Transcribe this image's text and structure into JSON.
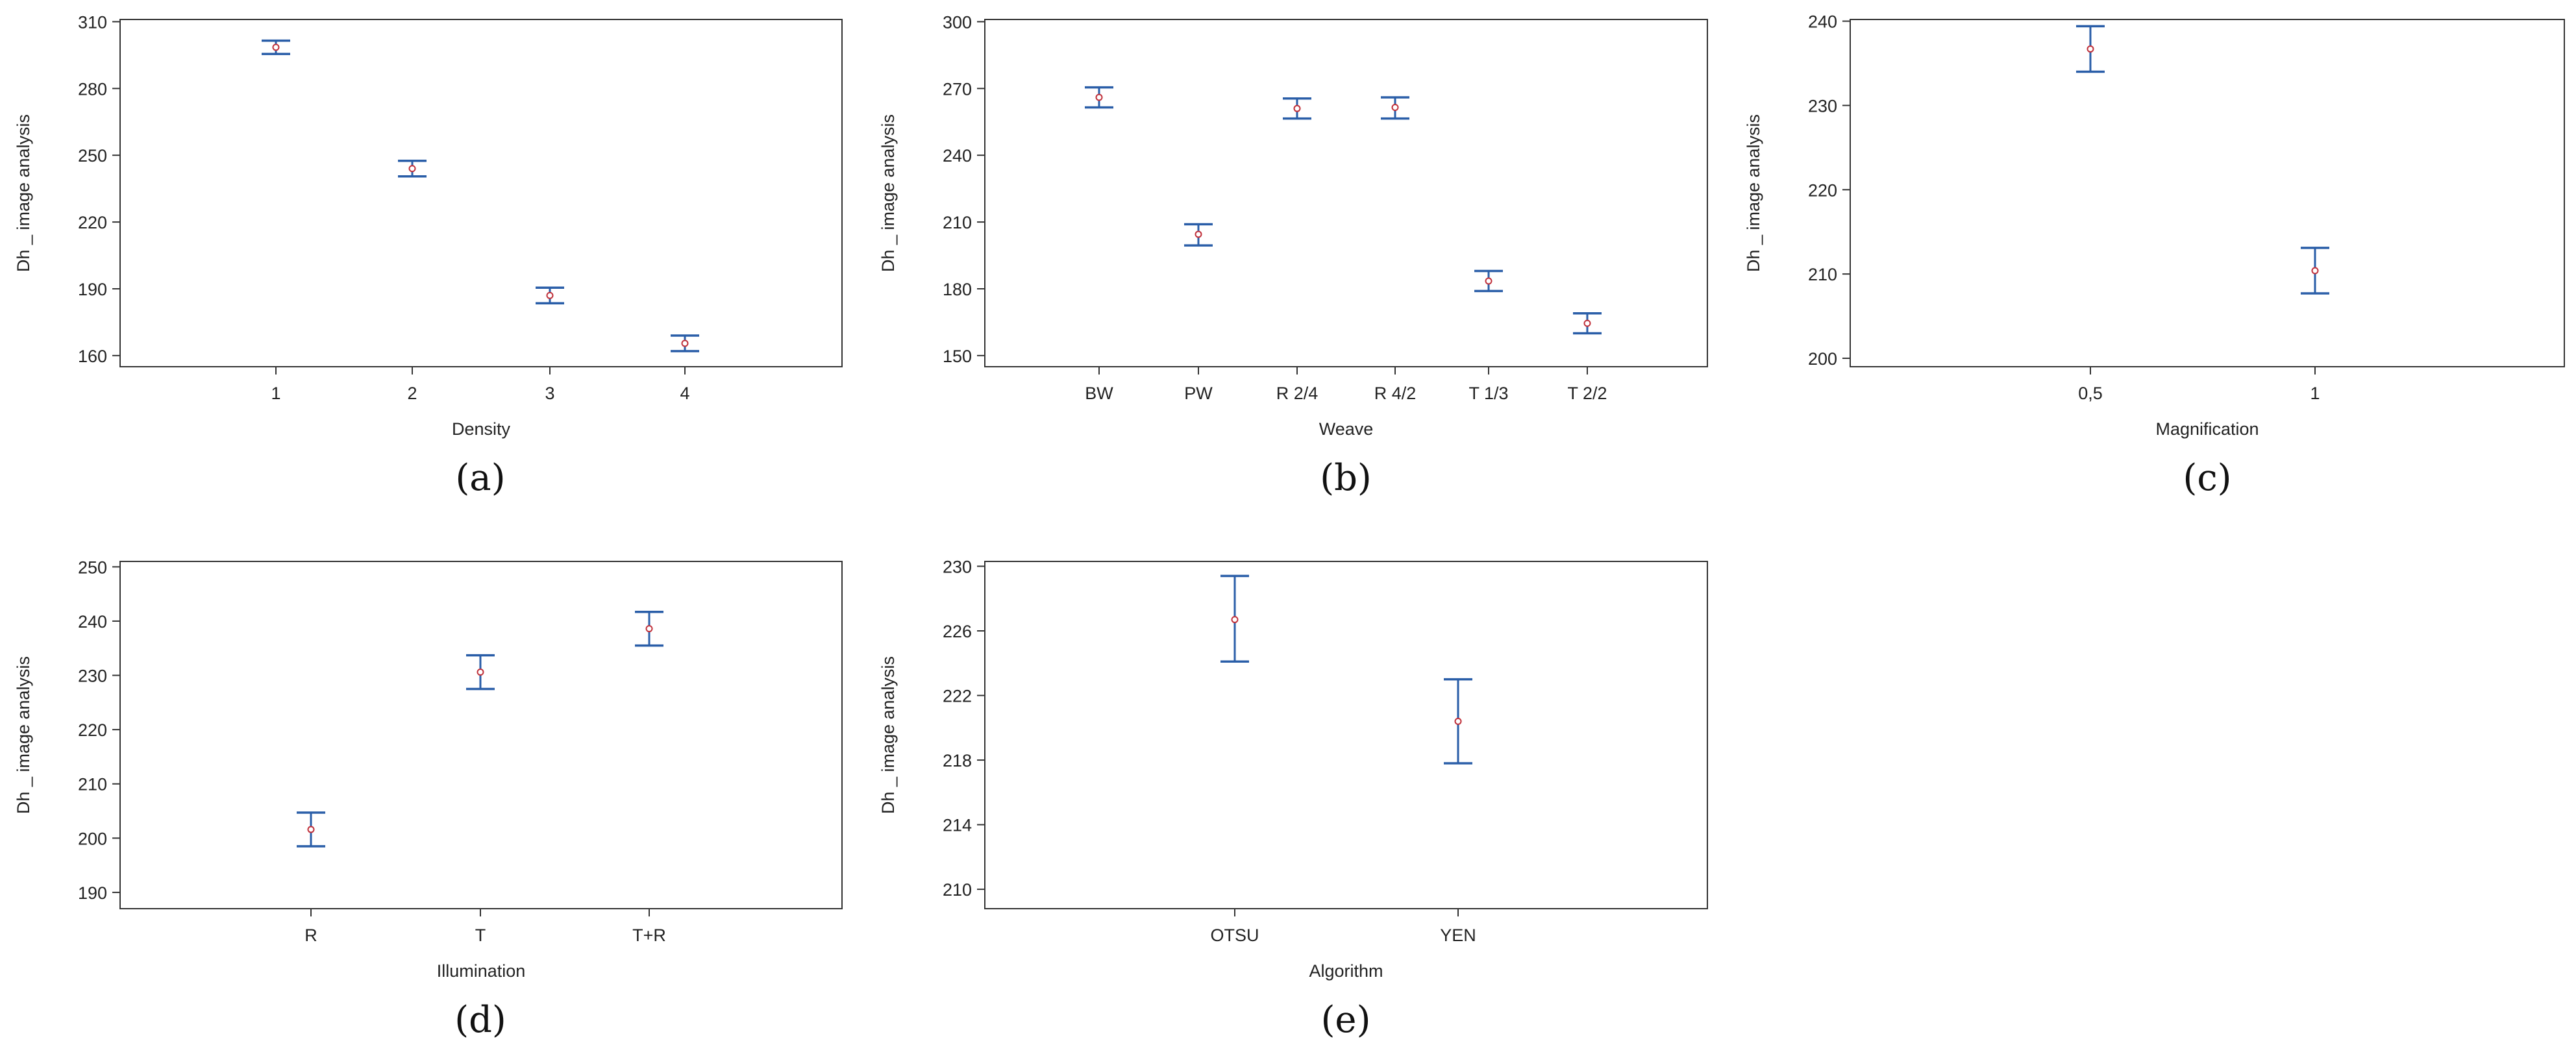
{
  "colors": {
    "errorbar": "#2a5ea8",
    "point": "#c0303a",
    "frame": "#333333",
    "text": "#222222"
  },
  "chart_data": [
    {
      "type": "scatter",
      "caption": "(a)",
      "xlabel": "Density",
      "ylabel": "Dh _ image analysis",
      "ylim": [
        155,
        311
      ],
      "yticks": [
        160,
        190,
        220,
        250,
        280,
        310
      ],
      "categories": [
        "1",
        "2",
        "3",
        "4"
      ],
      "series": [
        {
          "mean": [
            298.5,
            244,
            187,
            165.5
          ],
          "lower": [
            295.5,
            240.5,
            183.5,
            162
          ],
          "upper": [
            301.5,
            247.5,
            190.5,
            169
          ]
        }
      ]
    },
    {
      "type": "scatter",
      "caption": "(b)",
      "xlabel": "Weave",
      "ylabel": "Dh _ image analysis",
      "ylim": [
        145,
        301
      ],
      "yticks": [
        150,
        180,
        210,
        240,
        270,
        300
      ],
      "categories": [
        "BW",
        "PW",
        "R 2/4",
        "R 4/2",
        "T 1/3",
        "T 2/2"
      ],
      "series": [
        {
          "mean": [
            266,
            204.5,
            261,
            261.5,
            183.5,
            164.5
          ],
          "lower": [
            261.5,
            199.5,
            256.5,
            256.5,
            179,
            160
          ],
          "upper": [
            270.5,
            209,
            265.5,
            266,
            188,
            169
          ]
        }
      ]
    },
    {
      "type": "scatter",
      "caption": "(c)",
      "xlabel": "Magnification",
      "ylabel": "Dh _ image analysis",
      "ylim": [
        199,
        240.2
      ],
      "yticks": [
        200,
        210,
        220,
        230,
        240
      ],
      "categories": [
        "0,5",
        "1"
      ],
      "series": [
        {
          "mean": [
            236.7,
            210.4
          ],
          "lower": [
            234,
            207.7
          ],
          "upper": [
            239.4,
            213.1
          ]
        }
      ]
    },
    {
      "type": "scatter",
      "caption": "(d)",
      "xlabel": "Illumination",
      "ylabel": "Dh _ image analysis",
      "ylim": [
        187,
        251
      ],
      "yticks": [
        190,
        200,
        210,
        220,
        230,
        240,
        250
      ],
      "categories": [
        "R",
        "T",
        "T+R"
      ],
      "series": [
        {
          "mean": [
            201.6,
            230.6,
            238.6
          ],
          "lower": [
            198.5,
            227.5,
            235.5
          ],
          "upper": [
            204.7,
            233.7,
            241.7
          ]
        }
      ]
    },
    {
      "type": "scatter",
      "caption": "(e)",
      "xlabel": "Algorithm",
      "ylabel": "Dh _ image analysis",
      "ylim": [
        208.8,
        230.3
      ],
      "yticks": [
        210,
        214,
        218,
        222,
        226,
        230
      ],
      "categories": [
        "OTSU",
        "YEN"
      ],
      "series": [
        {
          "mean": [
            226.7,
            220.4
          ],
          "lower": [
            224.1,
            217.8
          ],
          "upper": [
            229.4,
            223
          ]
        }
      ]
    }
  ]
}
